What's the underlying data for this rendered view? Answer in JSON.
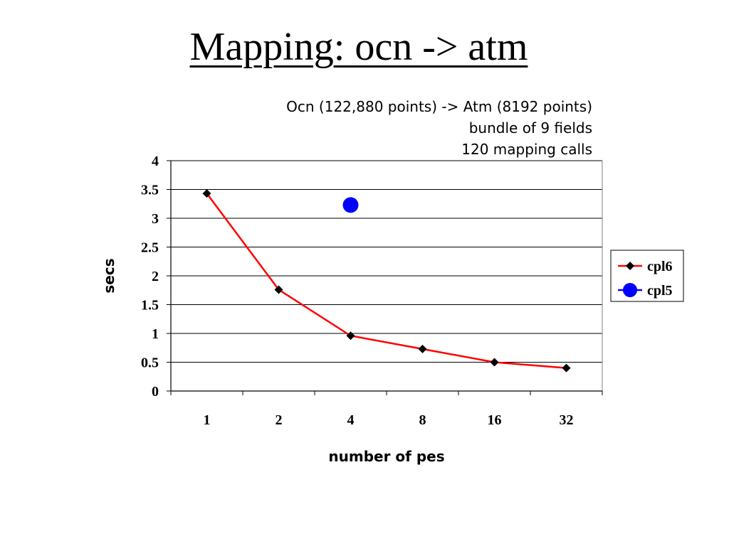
{
  "slide": {
    "title": "Mapping:  ocn -> atm"
  },
  "colors": {
    "cpl6_line": "#ff0000",
    "cpl6_marker": "#000000",
    "cpl5_marker": "#0000ff",
    "gridline": "#000000",
    "background": "#ffffff"
  },
  "chart_data": {
    "type": "line",
    "subtitle_lines": [
      "Ocn (122,880 points) -> Atm (8192 points)",
      "bundle of 9 fields",
      "120 mapping calls"
    ],
    "xlabel": "number of pes",
    "ylabel": "secs",
    "categories": [
      "1",
      "2",
      "4",
      "8",
      "16",
      "32"
    ],
    "ylim": [
      0,
      4
    ],
    "yticks": [
      "0",
      "0.5",
      "1",
      "1.5",
      "2",
      "2.5",
      "3",
      "3.5",
      "4"
    ],
    "grid": "horizontal",
    "legend_position": "right",
    "series": [
      {
        "name": "cpl6",
        "marker": "diamond",
        "line": true,
        "values": [
          3.43,
          1.76,
          0.96,
          0.73,
          0.5,
          0.4
        ]
      },
      {
        "name": "cpl5",
        "marker": "circle",
        "line": false,
        "values": [
          null,
          null,
          3.23,
          null,
          null,
          null
        ]
      }
    ]
  }
}
